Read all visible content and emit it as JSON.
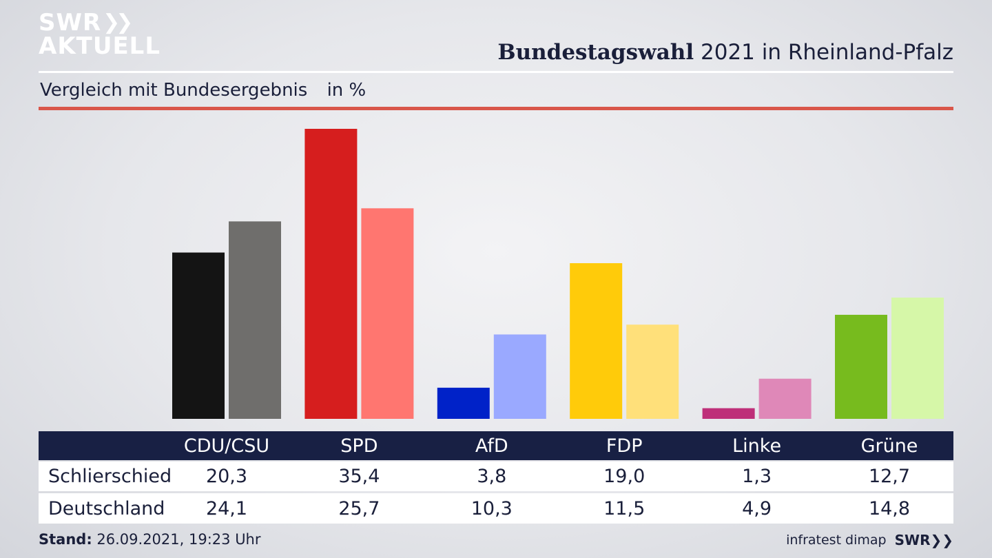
{
  "brand": {
    "line1": "SWR",
    "line2": "AKTUELL",
    "footer_brand": "SWR"
  },
  "header": {
    "title_bold": "Bundestagswahl",
    "title_rest": "2021 in Rheinland-Pfalz",
    "subtitle": "Vergleich mit Bundesergebnis",
    "unit": "in %"
  },
  "footer": {
    "stand_label": "Stand:",
    "stand_value": "26.09.2021, 19:23 Uhr",
    "source": "infratest dimap"
  },
  "colors": {
    "red_rule": "#d9564a",
    "table_header": "#182044",
    "parties": [
      {
        "dark": "#141414",
        "light": "#6f6e6c"
      },
      {
        "dark": "#d61e1e",
        "light": "#ff7670"
      },
      {
        "dark": "#0022c8",
        "light": "#9aa9ff"
      },
      {
        "dark": "#ffcb0a",
        "light": "#ffe07a"
      },
      {
        "dark": "#be2f79",
        "light": "#df88b8"
      },
      {
        "dark": "#77bb1e",
        "light": "#d6f7a8"
      }
    ]
  },
  "chart_data": {
    "type": "bar",
    "categories": [
      "CDU/CSU",
      "SPD",
      "AfD",
      "FDP",
      "Linke",
      "Grüne"
    ],
    "series": [
      {
        "name": "Schlierschied",
        "values": [
          20.3,
          35.4,
          3.8,
          19.0,
          1.3,
          12.7
        ],
        "labels": [
          "20,3",
          "35,4",
          "3,8",
          "19,0",
          "1,3",
          "12,7"
        ]
      },
      {
        "name": "Deutschland",
        "values": [
          24.1,
          25.7,
          10.3,
          11.5,
          4.9,
          14.8
        ],
        "labels": [
          "24,1",
          "25,7",
          "10,3",
          "11,5",
          "4,9",
          "14,8"
        ]
      }
    ],
    "title": "Bundestagswahl 2021 in Rheinland-Pfalz",
    "ylabel": "in %",
    "ylim": [
      0,
      35.4
    ],
    "grid": false,
    "legend": "table-below"
  }
}
